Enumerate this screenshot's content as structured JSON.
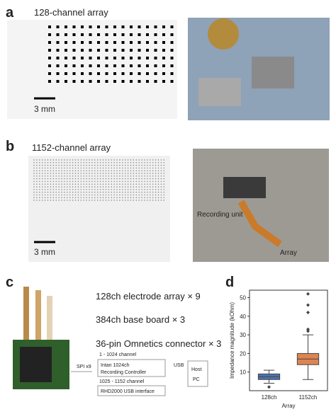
{
  "panel_a": {
    "letter": "a",
    "title": "128-channel array",
    "scale": "3 mm"
  },
  "panel_b": {
    "letter": "b",
    "title": "1152-channel array",
    "scale": "3 mm",
    "photo_labels": [
      "Recording unit",
      "Array"
    ]
  },
  "panel_c": {
    "letter": "c",
    "parts": [
      "128ch electrode array × 9",
      "384ch base board × 3",
      "36-pin Omnetics connector × 3"
    ],
    "spi": "SPI x9",
    "range1": "1 - 1024 channel",
    "controller1": [
      "Intan 1024ch",
      "Recording Controller"
    ],
    "range2": "1025 - 1152 channel",
    "controller2": "RHD2000 USB interface",
    "usb": "USB",
    "host": [
      "Host",
      "PC"
    ]
  },
  "panel_d": {
    "letter": "d",
    "chart_data": {
      "type": "box",
      "y_label": "Impedance magnitude (kOhm)",
      "x_label": "Array",
      "categories": [
        "128ch",
        "1152ch"
      ],
      "series": [
        {
          "whislo": 4,
          "q1": 6,
          "med": 7.5,
          "q3": 9,
          "whishi": 11,
          "fliers": [
            2
          ],
          "color": "#4c72b0"
        },
        {
          "whislo": 6,
          "q1": 14,
          "med": 17,
          "q3": 20,
          "whishi": 30,
          "fliers": [
            32,
            33,
            42,
            46,
            52
          ],
          "color": "#dd8452"
        }
      ],
      "ylim": [
        0,
        54
      ],
      "yticks": [
        10,
        20,
        30,
        40,
        50
      ]
    }
  }
}
